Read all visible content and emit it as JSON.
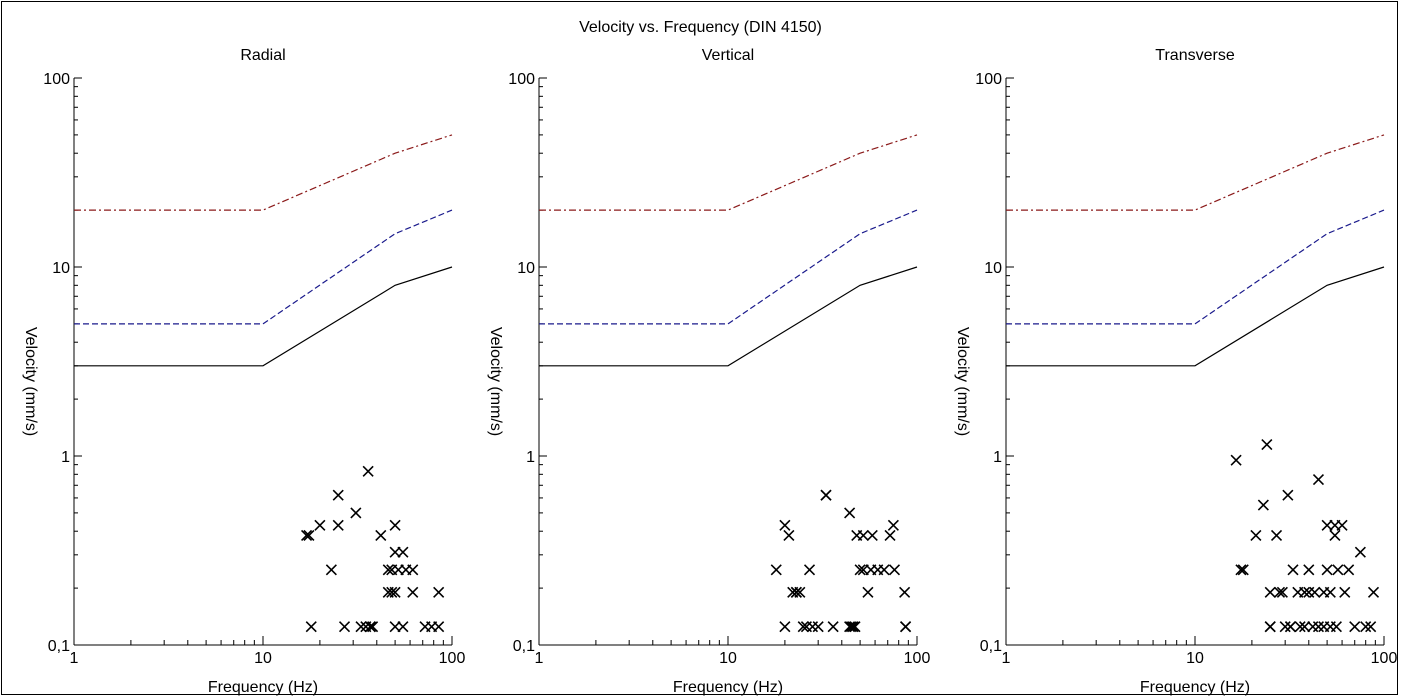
{
  "title": "Velocity vs. Frequency (DIN 4150)",
  "colors": {
    "axis": "#000000",
    "limit_line_1": "#000000",
    "limit_line_2": "#1a1a8c",
    "limit_line_3": "#8b1a1a",
    "marker": "#000000"
  },
  "chart_data": [
    {
      "type": "scatter",
      "title": "Radial",
      "xlabel": "Frequency (Hz)",
      "ylabel": "Velocity (mm/s)",
      "xscale": "log",
      "yscale": "log",
      "xlim": [
        1,
        100
      ],
      "ylim": [
        0.1,
        100
      ],
      "x_ticklabels": [
        "1",
        "10",
        "100"
      ],
      "y_ticklabels": [
        "0,1",
        "1",
        "10",
        "100"
      ],
      "limit_lines": [
        {
          "style": "solid",
          "color": "#000000",
          "x": [
            1,
            10,
            50,
            100
          ],
          "y": [
            3,
            3,
            8,
            10
          ]
        },
        {
          "style": "dashed",
          "color": "#1a1a8c",
          "x": [
            1,
            10,
            50,
            100
          ],
          "y": [
            5,
            5,
            15,
            20
          ]
        },
        {
          "style": "dashdot",
          "color": "#8b1a1a",
          "x": [
            1,
            10,
            50,
            100
          ],
          "y": [
            20,
            20,
            40,
            50
          ]
        }
      ],
      "points": {
        "x": [
          17,
          17.5,
          18,
          20,
          23,
          25,
          25,
          27,
          31,
          33,
          35,
          36,
          37,
          37,
          38,
          42,
          46,
          46,
          48,
          48,
          50,
          50,
          50,
          50,
          52,
          55,
          55,
          57,
          62,
          62,
          72,
          78,
          85,
          85
        ],
        "y": [
          0.38,
          0.38,
          0.125,
          0.43,
          0.25,
          0.43,
          0.62,
          0.125,
          0.5,
          0.125,
          0.125,
          0.83,
          0.125,
          0.125,
          0.125,
          0.38,
          0.25,
          0.19,
          0.19,
          0.25,
          0.31,
          0.43,
          0.125,
          0.19,
          0.25,
          0.31,
          0.125,
          0.25,
          0.25,
          0.19,
          0.125,
          0.125,
          0.19,
          0.125
        ]
      }
    },
    {
      "type": "scatter",
      "title": "Vertical",
      "xlabel": "Frequency (Hz)",
      "ylabel": "Velocity (mm/s)",
      "xscale": "log",
      "yscale": "log",
      "xlim": [
        1,
        100
      ],
      "ylim": [
        0.1,
        100
      ],
      "x_ticklabels": [
        "1",
        "10",
        "100"
      ],
      "y_ticklabels": [
        "0,1",
        "1",
        "10",
        "100"
      ],
      "limit_lines": [
        {
          "style": "solid",
          "color": "#000000",
          "x": [
            1,
            10,
            50,
            100
          ],
          "y": [
            3,
            3,
            8,
            10
          ]
        },
        {
          "style": "dashed",
          "color": "#1a1a8c",
          "x": [
            1,
            10,
            50,
            100
          ],
          "y": [
            5,
            5,
            15,
            20
          ]
        },
        {
          "style": "dashdot",
          "color": "#8b1a1a",
          "x": [
            1,
            10,
            50,
            100
          ],
          "y": [
            20,
            20,
            40,
            50
          ]
        }
      ],
      "points": {
        "x": [
          18,
          20,
          20,
          21,
          22,
          23,
          23,
          24,
          25,
          26,
          27,
          28,
          30,
          33,
          33,
          36,
          44,
          44,
          45,
          46,
          47,
          48,
          50,
          52,
          52,
          55,
          57,
          58,
          62,
          67,
          72,
          75,
          76,
          86,
          87,
          87
        ],
        "y": [
          0.25,
          0.43,
          0.125,
          0.38,
          0.19,
          0.19,
          0.19,
          0.19,
          0.125,
          0.125,
          0.25,
          0.125,
          0.125,
          0.62,
          0.62,
          0.125,
          0.125,
          0.5,
          0.125,
          0.125,
          0.125,
          0.38,
          0.25,
          0.25,
          0.38,
          0.19,
          0.25,
          0.38,
          0.25,
          0.25,
          0.38,
          0.43,
          0.25,
          0.19,
          0.125,
          0.125
        ]
      }
    },
    {
      "type": "scatter",
      "title": "Transverse",
      "xlabel": "Frequency (Hz)",
      "ylabel": "Velocity (mm/s)",
      "xscale": "log",
      "yscale": "log",
      "xlim": [
        1,
        100
      ],
      "ylim": [
        0.1,
        100
      ],
      "x_ticklabels": [
        "1",
        "10",
        "100"
      ],
      "y_ticklabels": [
        "0,1",
        "1",
        "10",
        "100"
      ],
      "limit_lines": [
        {
          "style": "solid",
          "color": "#000000",
          "x": [
            1,
            10,
            50,
            100
          ],
          "y": [
            3,
            3,
            8,
            10
          ]
        },
        {
          "style": "dashed",
          "color": "#1a1a8c",
          "x": [
            1,
            10,
            50,
            100
          ],
          "y": [
            5,
            5,
            15,
            20
          ]
        },
        {
          "style": "dashdot",
          "color": "#8b1a1a",
          "x": [
            1,
            10,
            50,
            100
          ],
          "y": [
            20,
            20,
            40,
            50
          ]
        }
      ],
      "points": {
        "x": [
          16.5,
          17.5,
          18,
          21,
          23,
          24,
          25,
          25,
          25,
          27,
          28,
          29,
          30,
          31,
          32,
          32,
          33,
          35,
          36,
          38,
          38,
          40,
          40,
          42,
          43,
          45,
          45,
          48,
          48,
          50,
          50,
          52,
          52,
          55,
          55,
          56,
          57,
          60,
          62,
          65,
          70,
          75,
          80,
          85,
          88
        ],
        "y": [
          0.95,
          0.25,
          0.25,
          0.38,
          0.55,
          1.15,
          0.19,
          0.125,
          0.125,
          0.38,
          0.19,
          0.19,
          0.125,
          0.62,
          0.125,
          0.125,
          0.25,
          0.19,
          0.125,
          0.19,
          0.125,
          0.25,
          0.19,
          0.125,
          0.19,
          0.75,
          0.125,
          0.19,
          0.125,
          0.25,
          0.43,
          0.125,
          0.19,
          0.38,
          0.43,
          0.125,
          0.25,
          0.43,
          0.19,
          0.25,
          0.125,
          0.31,
          0.125,
          0.125,
          0.19
        ]
      }
    }
  ]
}
